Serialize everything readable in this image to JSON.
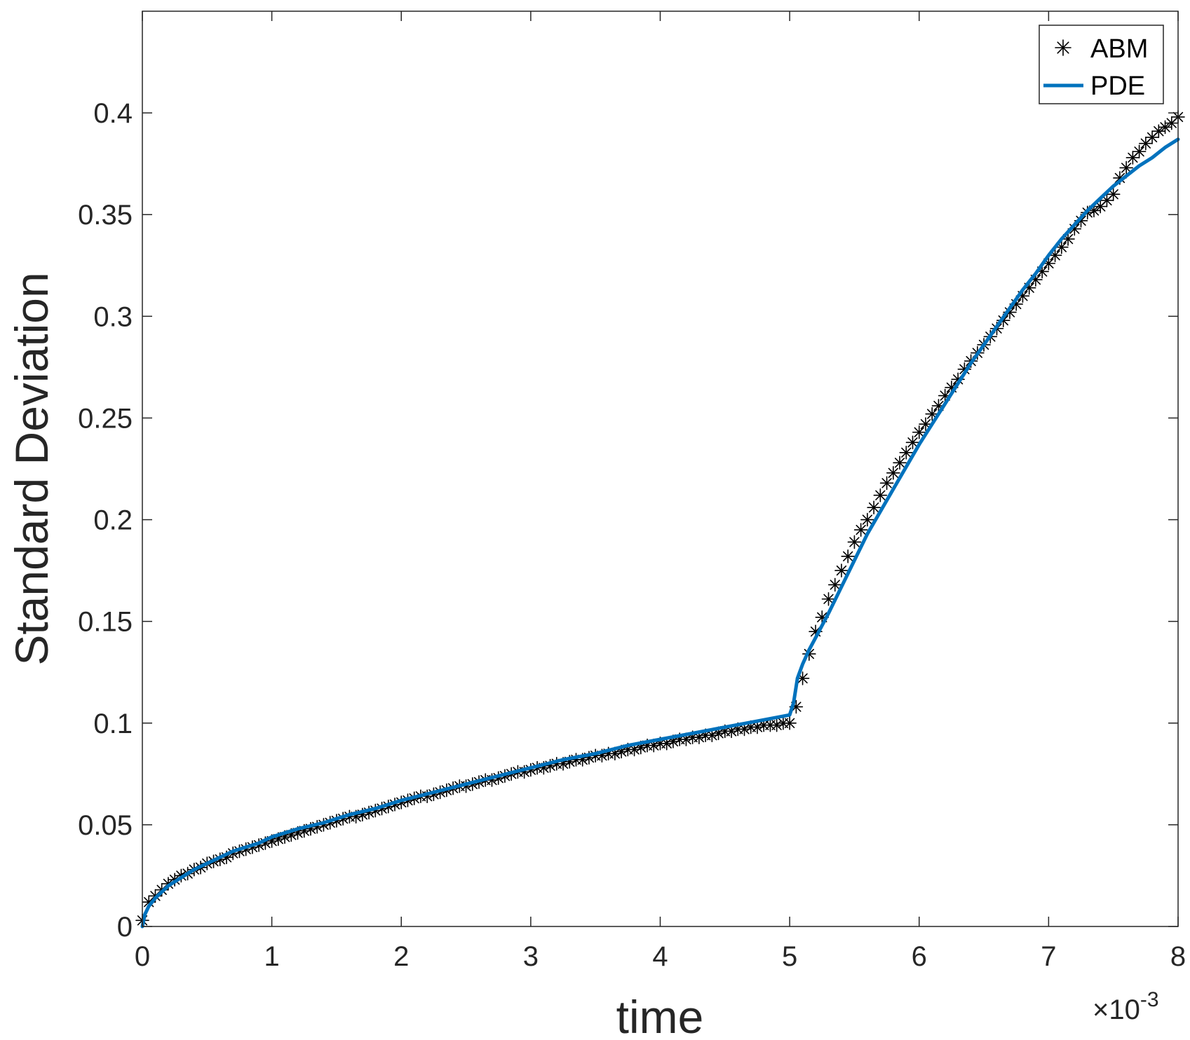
{
  "chart_data": {
    "type": "line",
    "xlabel": "time",
    "ylabel": "Standard Deviation",
    "x_exponent_label": "×10",
    "x_exponent_power": "-3",
    "xlim": [
      0,
      8
    ],
    "ylim": [
      0,
      0.45
    ],
    "x_ticks": [
      0,
      1,
      2,
      3,
      4,
      5,
      6,
      7,
      8
    ],
    "x_tick_labels": [
      "0",
      "1",
      "2",
      "3",
      "4",
      "5",
      "6",
      "7",
      "8"
    ],
    "y_ticks": [
      0,
      0.05,
      0.1,
      0.15,
      0.2,
      0.25,
      0.3,
      0.35,
      0.4
    ],
    "y_tick_labels": [
      "0",
      "0.05",
      "0.1",
      "0.15",
      "0.2",
      "0.25",
      "0.3",
      "0.35",
      "0.4"
    ],
    "grid": false,
    "legend_position": "top-right",
    "series": [
      {
        "name": "ABM",
        "style": "markers-asterisk",
        "color": "#000000",
        "points": [
          [
            0.0,
            0.003
          ],
          [
            0.05,
            0.012
          ],
          [
            0.1,
            0.015
          ],
          [
            0.15,
            0.018
          ],
          [
            0.2,
            0.021
          ],
          [
            0.25,
            0.023
          ],
          [
            0.3,
            0.025
          ],
          [
            0.35,
            0.026
          ],
          [
            0.4,
            0.028
          ],
          [
            0.45,
            0.029
          ],
          [
            0.5,
            0.031
          ],
          [
            0.55,
            0.032
          ],
          [
            0.6,
            0.033
          ],
          [
            0.65,
            0.034
          ],
          [
            0.7,
            0.036
          ],
          [
            0.75,
            0.037
          ],
          [
            0.8,
            0.038
          ],
          [
            0.85,
            0.039
          ],
          [
            0.9,
            0.04
          ],
          [
            0.95,
            0.041
          ],
          [
            1.0,
            0.042
          ],
          [
            1.05,
            0.043
          ],
          [
            1.1,
            0.044
          ],
          [
            1.15,
            0.045
          ],
          [
            1.2,
            0.046
          ],
          [
            1.25,
            0.047
          ],
          [
            1.3,
            0.048
          ],
          [
            1.35,
            0.049
          ],
          [
            1.4,
            0.05
          ],
          [
            1.45,
            0.051
          ],
          [
            1.5,
            0.052
          ],
          [
            1.55,
            0.053
          ],
          [
            1.6,
            0.054
          ],
          [
            1.65,
            0.054
          ],
          [
            1.7,
            0.055
          ],
          [
            1.75,
            0.056
          ],
          [
            1.8,
            0.057
          ],
          [
            1.85,
            0.058
          ],
          [
            1.9,
            0.059
          ],
          [
            1.95,
            0.06
          ],
          [
            2.0,
            0.061
          ],
          [
            2.05,
            0.062
          ],
          [
            2.1,
            0.063
          ],
          [
            2.15,
            0.064
          ],
          [
            2.2,
            0.064
          ],
          [
            2.25,
            0.065
          ],
          [
            2.3,
            0.066
          ],
          [
            2.35,
            0.067
          ],
          [
            2.4,
            0.068
          ],
          [
            2.45,
            0.069
          ],
          [
            2.5,
            0.069
          ],
          [
            2.55,
            0.07
          ],
          [
            2.6,
            0.071
          ],
          [
            2.65,
            0.072
          ],
          [
            2.7,
            0.072
          ],
          [
            2.75,
            0.073
          ],
          [
            2.8,
            0.074
          ],
          [
            2.85,
            0.075
          ],
          [
            2.9,
            0.076
          ],
          [
            2.95,
            0.076
          ],
          [
            3.0,
            0.077
          ],
          [
            3.05,
            0.078
          ],
          [
            3.1,
            0.078
          ],
          [
            3.15,
            0.079
          ],
          [
            3.2,
            0.08
          ],
          [
            3.25,
            0.08
          ],
          [
            3.3,
            0.081
          ],
          [
            3.35,
            0.082
          ],
          [
            3.4,
            0.082
          ],
          [
            3.45,
            0.083
          ],
          [
            3.5,
            0.084
          ],
          [
            3.55,
            0.084
          ],
          [
            3.6,
            0.085
          ],
          [
            3.65,
            0.085
          ],
          [
            3.7,
            0.086
          ],
          [
            3.75,
            0.087
          ],
          [
            3.8,
            0.087
          ],
          [
            3.85,
            0.088
          ],
          [
            3.9,
            0.089
          ],
          [
            3.95,
            0.089
          ],
          [
            4.0,
            0.09
          ],
          [
            4.05,
            0.09
          ],
          [
            4.1,
            0.091
          ],
          [
            4.15,
            0.092
          ],
          [
            4.2,
            0.092
          ],
          [
            4.25,
            0.093
          ],
          [
            4.3,
            0.093
          ],
          [
            4.35,
            0.094
          ],
          [
            4.4,
            0.094
          ],
          [
            4.45,
            0.095
          ],
          [
            4.5,
            0.096
          ],
          [
            4.55,
            0.096
          ],
          [
            4.6,
            0.097
          ],
          [
            4.65,
            0.097
          ],
          [
            4.7,
            0.098
          ],
          [
            4.75,
            0.098
          ],
          [
            4.8,
            0.099
          ],
          [
            4.85,
            0.099
          ],
          [
            4.9,
            0.099
          ],
          [
            4.95,
            0.1
          ],
          [
            5.0,
            0.1
          ],
          [
            5.05,
            0.108
          ],
          [
            5.1,
            0.122
          ],
          [
            5.15,
            0.134
          ],
          [
            5.2,
            0.145
          ],
          [
            5.25,
            0.152
          ],
          [
            5.3,
            0.161
          ],
          [
            5.35,
            0.168
          ],
          [
            5.4,
            0.175
          ],
          [
            5.45,
            0.182
          ],
          [
            5.5,
            0.189
          ],
          [
            5.55,
            0.195
          ],
          [
            5.6,
            0.2
          ],
          [
            5.65,
            0.206
          ],
          [
            5.7,
            0.212
          ],
          [
            5.75,
            0.218
          ],
          [
            5.8,
            0.223
          ],
          [
            5.85,
            0.228
          ],
          [
            5.9,
            0.233
          ],
          [
            5.95,
            0.238
          ],
          [
            6.0,
            0.243
          ],
          [
            6.05,
            0.247
          ],
          [
            6.1,
            0.252
          ],
          [
            6.15,
            0.256
          ],
          [
            6.2,
            0.261
          ],
          [
            6.25,
            0.265
          ],
          [
            6.3,
            0.269
          ],
          [
            6.35,
            0.274
          ],
          [
            6.4,
            0.278
          ],
          [
            6.45,
            0.282
          ],
          [
            6.5,
            0.286
          ],
          [
            6.55,
            0.29
          ],
          [
            6.6,
            0.294
          ],
          [
            6.65,
            0.298
          ],
          [
            6.7,
            0.302
          ],
          [
            6.75,
            0.306
          ],
          [
            6.8,
            0.31
          ],
          [
            6.85,
            0.314
          ],
          [
            6.9,
            0.318
          ],
          [
            6.95,
            0.322
          ],
          [
            7.0,
            0.326
          ],
          [
            7.05,
            0.33
          ],
          [
            7.1,
            0.334
          ],
          [
            7.15,
            0.338
          ],
          [
            7.2,
            0.343
          ],
          [
            7.25,
            0.347
          ],
          [
            7.3,
            0.351
          ],
          [
            7.35,
            0.352
          ],
          [
            7.4,
            0.354
          ],
          [
            7.45,
            0.357
          ],
          [
            7.5,
            0.36
          ],
          [
            7.55,
            0.368
          ],
          [
            7.6,
            0.373
          ],
          [
            7.65,
            0.378
          ],
          [
            7.7,
            0.381
          ],
          [
            7.75,
            0.385
          ],
          [
            7.8,
            0.388
          ],
          [
            7.85,
            0.391
          ],
          [
            7.9,
            0.393
          ],
          [
            7.95,
            0.395
          ],
          [
            8.0,
            0.398
          ]
        ]
      },
      {
        "name": "PDE",
        "style": "line",
        "color": "#0072BD",
        "points": [
          [
            0.0,
            0.0
          ],
          [
            0.02,
            0.006
          ],
          [
            0.05,
            0.01
          ],
          [
            0.1,
            0.014
          ],
          [
            0.2,
            0.02
          ],
          [
            0.3,
            0.024
          ],
          [
            0.4,
            0.028
          ],
          [
            0.5,
            0.031
          ],
          [
            0.6,
            0.034
          ],
          [
            0.7,
            0.037
          ],
          [
            0.8,
            0.039
          ],
          [
            0.9,
            0.041
          ],
          [
            1.0,
            0.044
          ],
          [
            1.2,
            0.048
          ],
          [
            1.4,
            0.051
          ],
          [
            1.6,
            0.055
          ],
          [
            1.8,
            0.058
          ],
          [
            2.0,
            0.062
          ],
          [
            2.25,
            0.066
          ],
          [
            2.5,
            0.07
          ],
          [
            2.75,
            0.074
          ],
          [
            3.0,
            0.078
          ],
          [
            3.25,
            0.082
          ],
          [
            3.5,
            0.085
          ],
          [
            3.75,
            0.089
          ],
          [
            4.0,
            0.092
          ],
          [
            4.25,
            0.095
          ],
          [
            4.5,
            0.098
          ],
          [
            4.75,
            0.101
          ],
          [
            5.0,
            0.104
          ],
          [
            5.03,
            0.11
          ],
          [
            5.06,
            0.122
          ],
          [
            5.1,
            0.129
          ],
          [
            5.15,
            0.136
          ],
          [
            5.2,
            0.142
          ],
          [
            5.3,
            0.154
          ],
          [
            5.4,
            0.167
          ],
          [
            5.5,
            0.18
          ],
          [
            5.6,
            0.193
          ],
          [
            5.7,
            0.204
          ],
          [
            5.8,
            0.215
          ],
          [
            5.9,
            0.226
          ],
          [
            6.0,
            0.237
          ],
          [
            6.1,
            0.247
          ],
          [
            6.2,
            0.257
          ],
          [
            6.3,
            0.267
          ],
          [
            6.4,
            0.277
          ],
          [
            6.5,
            0.286
          ],
          [
            6.6,
            0.295
          ],
          [
            6.7,
            0.304
          ],
          [
            6.8,
            0.313
          ],
          [
            6.9,
            0.321
          ],
          [
            7.0,
            0.33
          ],
          [
            7.1,
            0.338
          ],
          [
            7.2,
            0.345
          ],
          [
            7.3,
            0.352
          ],
          [
            7.4,
            0.358
          ],
          [
            7.5,
            0.364
          ],
          [
            7.6,
            0.369
          ],
          [
            7.7,
            0.374
          ],
          [
            7.8,
            0.378
          ],
          [
            7.9,
            0.383
          ],
          [
            8.0,
            0.387
          ]
        ]
      }
    ]
  }
}
